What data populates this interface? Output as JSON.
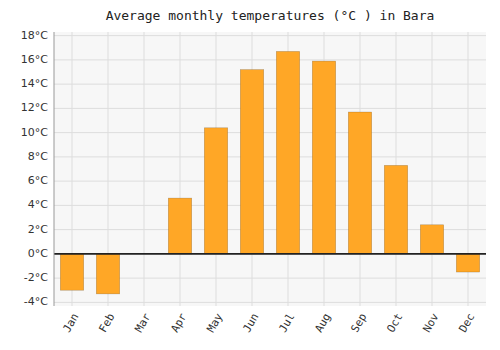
{
  "chart_data": {
    "type": "bar",
    "title": "Average monthly temperatures (°C ) in Bara",
    "categories": [
      "Jan",
      "Feb",
      "Mar",
      "Apr",
      "May",
      "Jun",
      "Jul",
      "Aug",
      "Sep",
      "Oct",
      "Nov",
      "Dec"
    ],
    "values": [
      -3.0,
      -3.3,
      0.0,
      4.6,
      10.4,
      15.2,
      16.7,
      15.9,
      11.7,
      7.3,
      2.4,
      -1.5
    ],
    "color": "#FFA726",
    "ylim": [
      -4.3,
      18.3
    ],
    "yticks": [
      {
        "value": -4,
        "label": "-4°C"
      },
      {
        "value": -2,
        "label": "-2°C"
      },
      {
        "value": 0,
        "label": "0°C"
      },
      {
        "value": 2,
        "label": "2°C"
      },
      {
        "value": 4,
        "label": "4°C"
      },
      {
        "value": 6,
        "label": "6°C"
      },
      {
        "value": 8,
        "label": "8°C"
      },
      {
        "value": 10,
        "label": "10°C"
      },
      {
        "value": 12,
        "label": "12°C"
      },
      {
        "value": 14,
        "label": "14°C"
      },
      {
        "value": 16,
        "label": "16°C"
      },
      {
        "value": 18,
        "label": "18°C"
      }
    ],
    "grid": true
  }
}
